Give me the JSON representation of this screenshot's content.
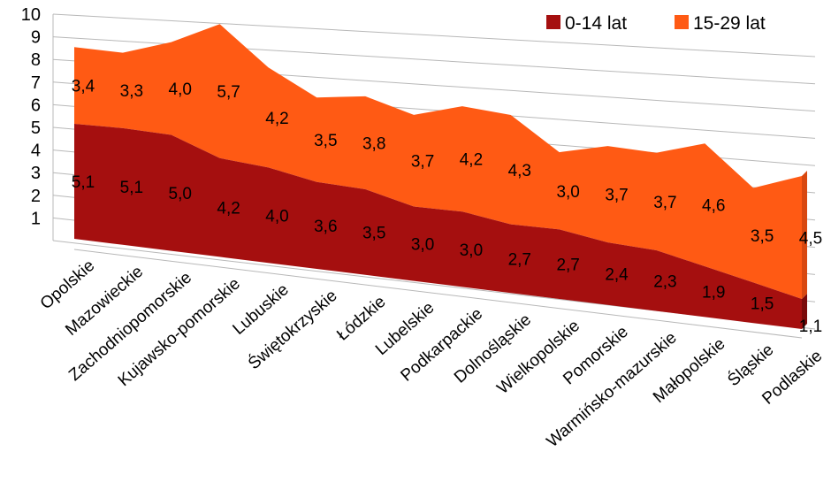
{
  "chart_data": {
    "type": "area",
    "categories": [
      "Opolskie",
      "Mazowieckie",
      "Zachodniopomorskie",
      "Kujawsko-pomorskie",
      "Lubuskie",
      "Świętokrzyskie",
      "Łódzkie",
      "Lubelskie",
      "Podkarpackie",
      "Dolnośląskie",
      "Wielkopolskie",
      "Pomorskie",
      "Warmińsko-mazurskie",
      "Małopolskie",
      "Śląskie",
      "Podlaskie"
    ],
    "series": [
      {
        "name": "0-14 lat",
        "color": "#a50f0f",
        "values": [
          5.1,
          5.1,
          5.0,
          4.2,
          4.0,
          3.6,
          3.5,
          3.0,
          3.0,
          2.7,
          2.7,
          2.4,
          2.3,
          1.9,
          1.5,
          1.1
        ],
        "labels": [
          "5,1",
          "5,1",
          "5,0",
          "4,2",
          "4,0",
          "3,6",
          "3,5",
          "3,0",
          "3,0",
          "2,7",
          "2,7",
          "2,4",
          "2,3",
          "1,9",
          "1,5",
          "1,1"
        ]
      },
      {
        "name": "15-29 lat",
        "color": "#ff5a14",
        "values": [
          3.4,
          3.3,
          4.0,
          5.7,
          4.2,
          3.5,
          3.8,
          3.7,
          4.2,
          4.3,
          3.0,
          3.7,
          3.7,
          4.6,
          3.5,
          4.5
        ],
        "labels": [
          "3,4",
          "3,3",
          "4,0",
          "5,7",
          "4,2",
          "3,5",
          "3,8",
          "3,7",
          "4,2",
          "4,3",
          "3,0",
          "3,7",
          "3,7",
          "4,6",
          "3,5",
          "4,5"
        ]
      }
    ],
    "stacked": true,
    "yticks": [
      "1",
      "2",
      "3",
      "4",
      "5",
      "6",
      "7",
      "8",
      "9",
      "10"
    ],
    "ylim": [
      0,
      10
    ],
    "grid": true,
    "legend_position": "top-right"
  }
}
